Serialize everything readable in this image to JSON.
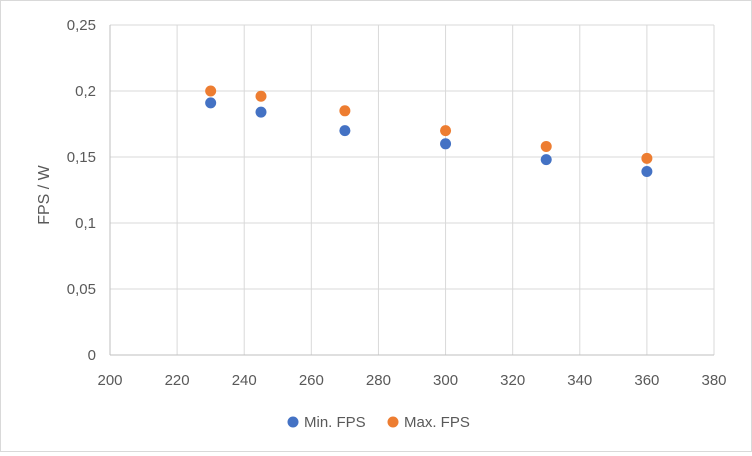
{
  "chart_data": {
    "type": "scatter",
    "title": "",
    "xlabel": "",
    "ylabel": "FPS / W",
    "xlim": [
      200,
      380
    ],
    "ylim": [
      0,
      0.25
    ],
    "x_ticks": [
      200,
      220,
      240,
      260,
      280,
      300,
      320,
      340,
      360,
      380
    ],
    "y_ticks": [
      0,
      0.05,
      0.1,
      0.15,
      0.2,
      0.25
    ],
    "x_tick_labels": [
      "200",
      "220",
      "240",
      "260",
      "280",
      "300",
      "320",
      "340",
      "360",
      "380"
    ],
    "y_tick_labels": [
      "0",
      "0,05",
      "0,1",
      "0,15",
      "0,2",
      "0,25"
    ],
    "grid": true,
    "legend_position": "bottom",
    "series": [
      {
        "name": "Min. FPS",
        "color": "#4472c4",
        "points": [
          {
            "x": 230,
            "y": 0.191
          },
          {
            "x": 245,
            "y": 0.184
          },
          {
            "x": 270,
            "y": 0.17
          },
          {
            "x": 300,
            "y": 0.16
          },
          {
            "x": 330,
            "y": 0.148
          },
          {
            "x": 360,
            "y": 0.139
          }
        ]
      },
      {
        "name": "Max. FPS",
        "color": "#ed7d31",
        "points": [
          {
            "x": 230,
            "y": 0.2
          },
          {
            "x": 245,
            "y": 0.196
          },
          {
            "x": 270,
            "y": 0.185
          },
          {
            "x": 300,
            "y": 0.17
          },
          {
            "x": 330,
            "y": 0.158
          },
          {
            "x": 360,
            "y": 0.149
          }
        ]
      }
    ]
  }
}
